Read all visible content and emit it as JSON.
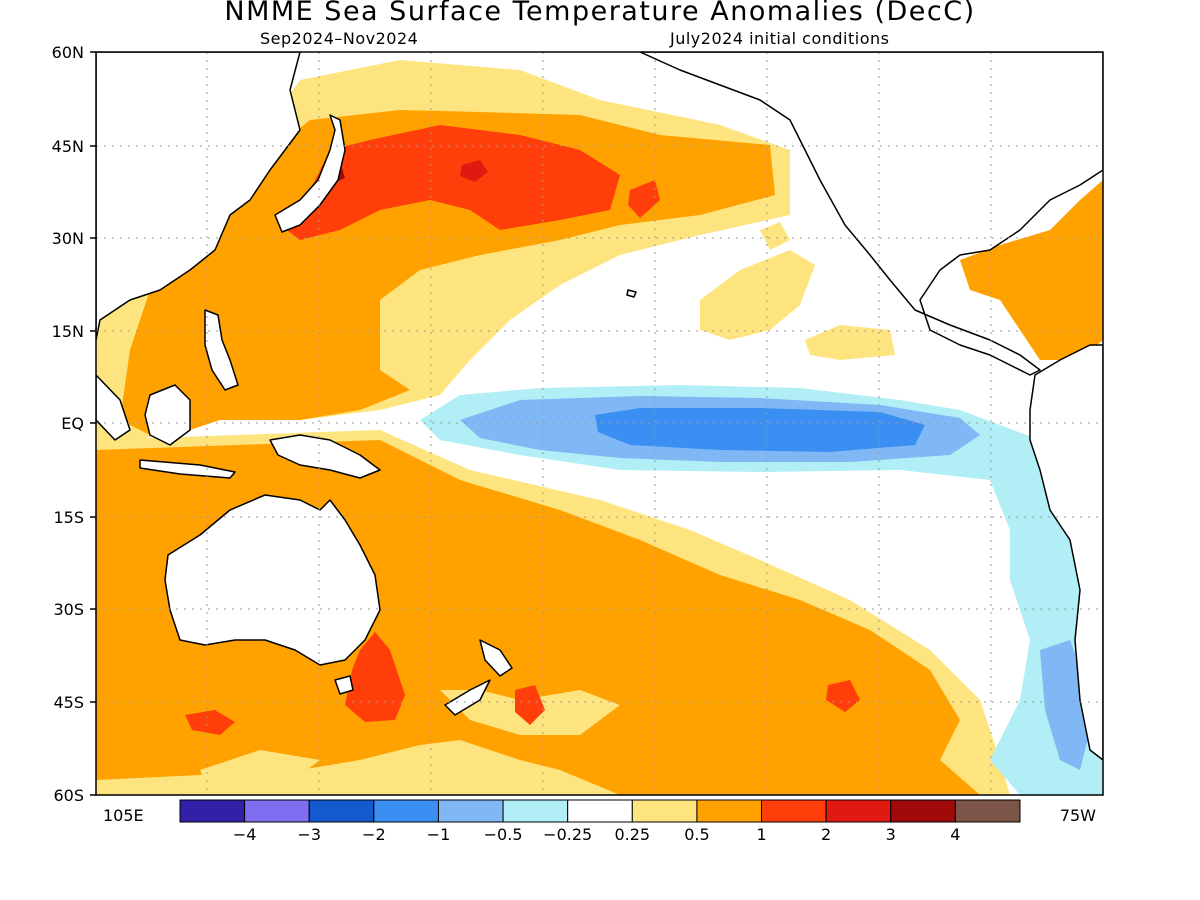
{
  "title": "NMME Sea Surface Temperature Anomalies (DecC)",
  "subtitle_left": "Sep2024–Nov2024",
  "subtitle_right": "July2024 initial conditions",
  "lat_labels": [
    "60N",
    "45N",
    "30N",
    "15N",
    "EQ",
    "15S",
    "30S",
    "45S",
    "60S"
  ],
  "lon_labels": [
    "105E",
    "75W"
  ],
  "colorbar": {
    "colors": [
      "#3320a8",
      "#7f6ff0",
      "#1559cf",
      "#3b8ef2",
      "#7fb8f5",
      "#b2eef5",
      "#ffffff",
      "#fde47f",
      "#ffa200",
      "#ff3e0a",
      "#e01a10",
      "#a10a0a",
      "#7a5548"
    ],
    "tick_labels": [
      "−4",
      "−3",
      "−2",
      "−1",
      "−0.5",
      "−0.25",
      "0.25",
      "0.5",
      "1",
      "2",
      "3",
      "4"
    ]
  }
}
